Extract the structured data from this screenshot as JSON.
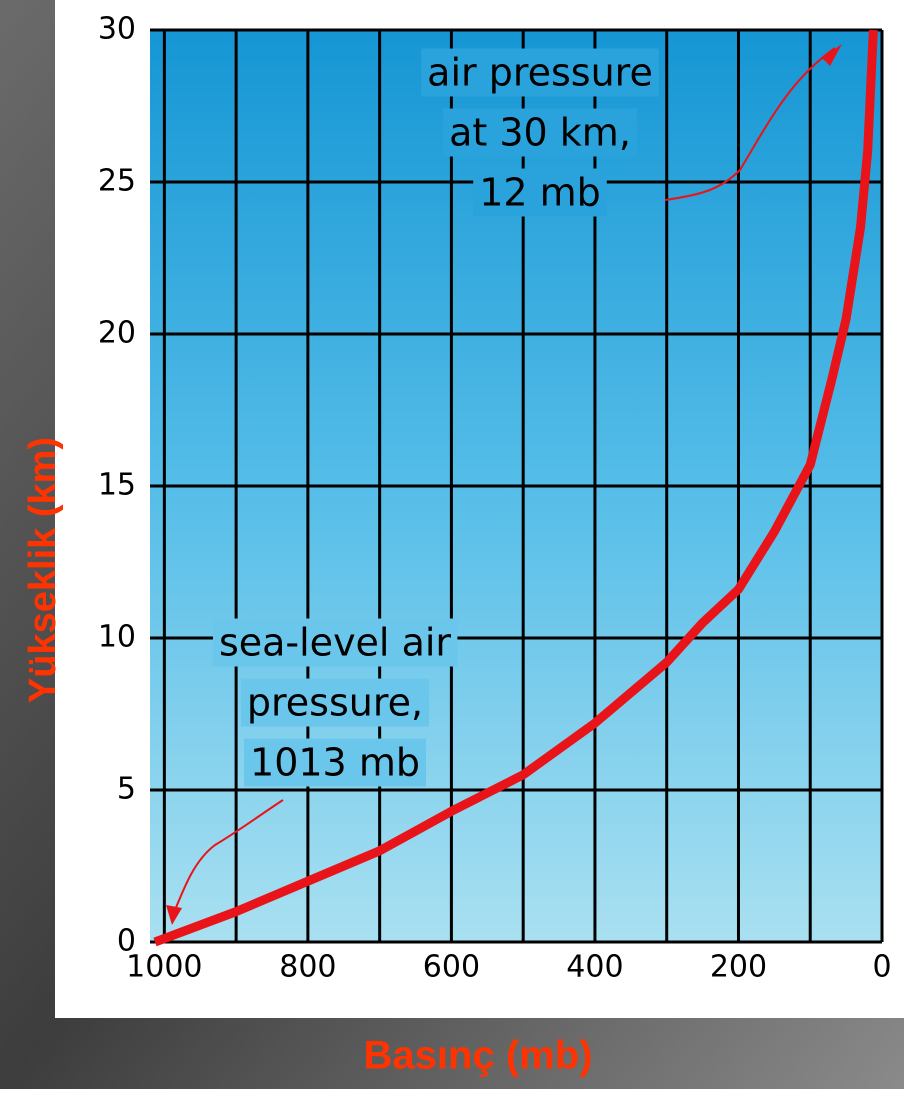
{
  "chart_data": {
    "type": "line",
    "x_label": "Basınç (mb)",
    "y_label": "Yükseklik (km)",
    "x": [
      1013,
      900,
      800,
      700,
      600,
      500,
      400,
      300,
      250,
      200,
      150,
      100,
      70,
      50,
      30,
      20,
      12
    ],
    "series": [
      {
        "color": "#e8141a",
        "values": [
          0,
          1,
          2,
          3,
          4.3,
          5.5,
          7.2,
          9.2,
          10.5,
          11.6,
          13.5,
          15.7,
          18.5,
          20.5,
          23.5,
          26,
          30
        ]
      }
    ],
    "xlim": [
      1020,
      0
    ],
    "ylim": [
      0,
      30
    ],
    "xticks": [
      1000,
      800,
      600,
      400,
      200,
      0
    ],
    "x_minor_grid": [
      900,
      700,
      500,
      300,
      100
    ],
    "yticks": [
      0,
      5,
      10,
      15,
      20,
      25,
      30
    ],
    "grid": true,
    "annotations": [
      {
        "lines": [
          "air pressure",
          "at 30 km,",
          "12 mb"
        ]
      },
      {
        "lines": [
          "sea-level air",
          "pressure,",
          "1013 mb"
        ]
      }
    ]
  }
}
